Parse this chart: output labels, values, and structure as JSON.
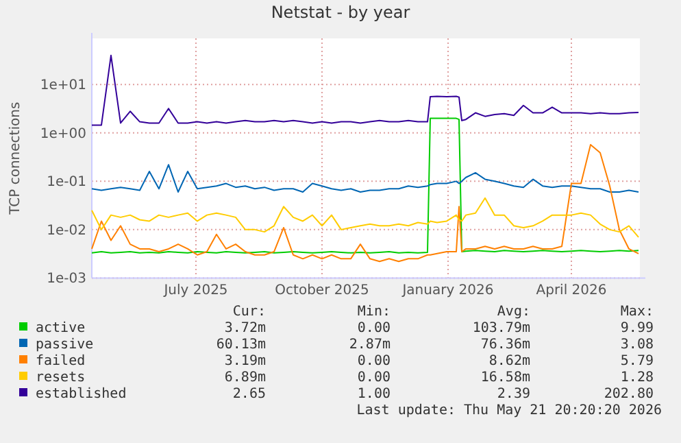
{
  "chart_data": {
    "type": "line",
    "title": "Netstat - by year",
    "ylabel": "TCP connections",
    "log": "y",
    "grid": true,
    "legend": "bottom",
    "line_style": "solid",
    "marker": "none",
    "x": [
      "2025-04-16",
      "2025-04-23",
      "2025-04-30",
      "2025-05-07",
      "2025-05-14",
      "2025-05-21",
      "2025-05-28",
      "2025-06-04",
      "2025-06-11",
      "2025-06-18",
      "2025-06-25",
      "2025-07-02",
      "2025-07-09",
      "2025-07-16",
      "2025-07-23",
      "2025-07-30",
      "2025-08-06",
      "2025-08-13",
      "2025-08-20",
      "2025-08-27",
      "2025-09-03",
      "2025-09-10",
      "2025-09-17",
      "2025-09-24",
      "2025-10-01",
      "2025-10-08",
      "2025-10-15",
      "2025-10-22",
      "2025-10-29",
      "2025-11-05",
      "2025-11-12",
      "2025-11-19",
      "2025-11-26",
      "2025-12-03",
      "2025-12-10",
      "2025-12-17",
      "2025-12-19",
      "2025-12-24",
      "2025-12-31",
      "2026-01-07",
      "2026-01-09",
      "2026-01-11",
      "2026-01-14",
      "2026-01-21",
      "2026-01-28",
      "2026-02-04",
      "2026-02-11",
      "2026-02-18",
      "2026-02-25",
      "2026-03-04",
      "2026-03-11",
      "2026-03-18",
      "2026-03-25",
      "2026-04-01",
      "2026-04-08",
      "2026-04-15",
      "2026-04-22",
      "2026-04-29",
      "2026-05-06",
      "2026-05-13",
      "2026-05-20"
    ],
    "xlim": [
      "2025-04-16",
      "2026-05-21"
    ],
    "xticks": [
      {
        "value": "2025-07-01",
        "label": "July 2025"
      },
      {
        "value": "2025-10-01",
        "label": "October 2025"
      },
      {
        "value": "2026-01-01",
        "label": "January 2026"
      },
      {
        "value": "2026-04-01",
        "label": "April 2026"
      }
    ],
    "ylim": [
      0.001,
      90
    ],
    "yticks": [
      {
        "value": 0.001,
        "label": "1e-03"
      },
      {
        "value": 0.01,
        "label": "1e-02"
      },
      {
        "value": 0.1,
        "label": "1e-01"
      },
      {
        "value": 1,
        "label": "1e+00"
      },
      {
        "value": 10,
        "label": "1e+01"
      }
    ],
    "series": [
      {
        "name": "active",
        "color": "#00cc00",
        "values": [
          0.0033,
          0.0035,
          0.0033,
          0.0034,
          0.0035,
          0.0033,
          0.0034,
          0.0033,
          0.0035,
          0.0034,
          0.0033,
          0.0035,
          0.0034,
          0.0033,
          0.0035,
          0.0034,
          0.0033,
          0.0034,
          0.0035,
          0.0033,
          0.0034,
          0.0035,
          0.0034,
          0.0033,
          0.0034,
          0.0035,
          0.0034,
          0.0033,
          0.0034,
          0.0033,
          0.0034,
          0.0035,
          0.0033,
          0.0034,
          0.0033,
          0.0034,
          2.0,
          2.0,
          2.0,
          2.0,
          1.9,
          0.0035,
          0.0036,
          0.0037,
          0.0036,
          0.0035,
          0.0037,
          0.0036,
          0.0035,
          0.0036,
          0.0037,
          0.0036,
          0.0035,
          0.0036,
          0.0037,
          0.0036,
          0.0035,
          0.0036,
          0.0037,
          0.0036,
          0.0037
        ]
      },
      {
        "name": "passive",
        "color": "#0066b3",
        "values": [
          0.07,
          0.065,
          0.07,
          0.075,
          0.07,
          0.065,
          0.16,
          0.07,
          0.22,
          0.06,
          0.16,
          0.07,
          0.075,
          0.08,
          0.09,
          0.075,
          0.08,
          0.07,
          0.075,
          0.065,
          0.07,
          0.07,
          0.06,
          0.09,
          0.08,
          0.07,
          0.065,
          0.07,
          0.06,
          0.065,
          0.065,
          0.07,
          0.07,
          0.08,
          0.075,
          0.08,
          0.085,
          0.09,
          0.09,
          0.1,
          0.09,
          0.1,
          0.12,
          0.15,
          0.11,
          0.1,
          0.09,
          0.08,
          0.075,
          0.11,
          0.08,
          0.075,
          0.08,
          0.08,
          0.075,
          0.07,
          0.07,
          0.06,
          0.06,
          0.065,
          0.06
        ]
      },
      {
        "name": "failed",
        "color": "#ff8000",
        "values": [
          0.004,
          0.015,
          0.006,
          0.012,
          0.005,
          0.004,
          0.004,
          0.0035,
          0.004,
          0.005,
          0.004,
          0.003,
          0.0035,
          0.008,
          0.004,
          0.005,
          0.0035,
          0.003,
          0.003,
          0.0035,
          0.011,
          0.003,
          0.0025,
          0.003,
          0.0025,
          0.003,
          0.0025,
          0.0025,
          0.005,
          0.0025,
          0.0022,
          0.0025,
          0.0022,
          0.0025,
          0.0025,
          0.003,
          0.003,
          0.0032,
          0.0035,
          0.0035,
          0.03,
          0.0035,
          0.004,
          0.004,
          0.0045,
          0.004,
          0.0045,
          0.004,
          0.004,
          0.0045,
          0.004,
          0.004,
          0.0045,
          0.09,
          0.09,
          0.57,
          0.39,
          0.08,
          0.01,
          0.004,
          0.0032
        ]
      },
      {
        "name": "resets",
        "color": "#ffcc00",
        "values": [
          0.025,
          0.01,
          0.02,
          0.018,
          0.02,
          0.016,
          0.015,
          0.02,
          0.018,
          0.02,
          0.022,
          0.015,
          0.02,
          0.022,
          0.02,
          0.018,
          0.01,
          0.01,
          0.009,
          0.012,
          0.03,
          0.018,
          0.015,
          0.02,
          0.012,
          0.02,
          0.01,
          0.011,
          0.012,
          0.013,
          0.012,
          0.012,
          0.013,
          0.012,
          0.014,
          0.013,
          0.015,
          0.014,
          0.015,
          0.02,
          0.016,
          0.015,
          0.02,
          0.022,
          0.045,
          0.02,
          0.02,
          0.012,
          0.011,
          0.012,
          0.015,
          0.02,
          0.02,
          0.02,
          0.022,
          0.02,
          0.013,
          0.01,
          0.009,
          0.012,
          0.007
        ]
      },
      {
        "name": "established",
        "color": "#330099",
        "values": [
          1.45,
          1.45,
          40,
          1.6,
          2.8,
          1.7,
          1.6,
          1.6,
          3.2,
          1.6,
          1.6,
          1.7,
          1.6,
          1.7,
          1.6,
          1.7,
          1.8,
          1.7,
          1.7,
          1.8,
          1.7,
          1.8,
          1.7,
          1.6,
          1.7,
          1.6,
          1.7,
          1.7,
          1.6,
          1.7,
          1.8,
          1.7,
          1.7,
          1.8,
          1.7,
          1.7,
          5.6,
          5.7,
          5.6,
          5.7,
          5.5,
          1.8,
          1.9,
          2.6,
          2.2,
          2.4,
          2.5,
          2.3,
          3.7,
          2.6,
          2.6,
          3.4,
          2.6,
          2.6,
          2.6,
          2.5,
          2.6,
          2.5,
          2.5,
          2.6,
          2.65
        ]
      }
    ],
    "annotations": [
      "Cur:",
      "Min:",
      "Avg:",
      "Max:",
      "3.72m",
      "0.00",
      "103.79m",
      "9.99",
      "60.13m",
      "2.87m",
      "76.36m",
      "3.08",
      "3.19m",
      "0.00",
      "8.62m",
      "5.79",
      "6.89m",
      "0.00",
      "16.58m",
      "1.28",
      "2.65",
      "1.00",
      "2.39",
      "202.80",
      "Last update: Thu May 21 20:20:20 2026"
    ]
  }
}
